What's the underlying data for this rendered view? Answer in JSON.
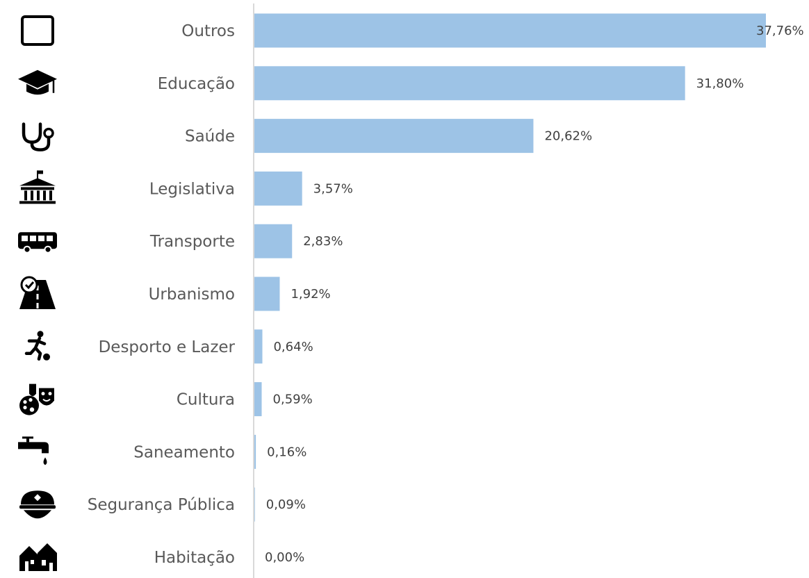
{
  "chart_data": {
    "type": "bar",
    "orientation": "horizontal",
    "title": "",
    "xlabel": "",
    "ylabel": "",
    "xlim": [
      0,
      37.76
    ],
    "grid": false,
    "legend": "none",
    "bar_color": "#9DC3E6",
    "axis_color": "#D9D9D9",
    "categories": [
      "Outros",
      "Educação",
      "Saúde",
      "Legislativa",
      "Transporte",
      "Urbanismo",
      "Desporto e Lazer",
      "Cultura",
      "Saneamento",
      "Segurança Pública",
      "Habitação"
    ],
    "values": [
      37.76,
      31.8,
      20.62,
      3.57,
      2.83,
      1.92,
      0.64,
      0.59,
      0.16,
      0.09,
      0.0
    ],
    "value_labels": [
      "37,76%",
      "31,80%",
      "20,62%",
      "3,57%",
      "2,83%",
      "1,92%",
      "0,64%",
      "0,59%",
      "0,16%",
      "0,09%",
      "0,00%"
    ],
    "icons": [
      "square-outline-icon",
      "graduation-cap-icon",
      "stethoscope-icon",
      "government-building-icon",
      "bus-icon",
      "road-icon",
      "soccer-player-icon",
      "theater-masks-palette-icon",
      "water-faucet-icon",
      "police-cap-icon",
      "houses-icon"
    ]
  }
}
